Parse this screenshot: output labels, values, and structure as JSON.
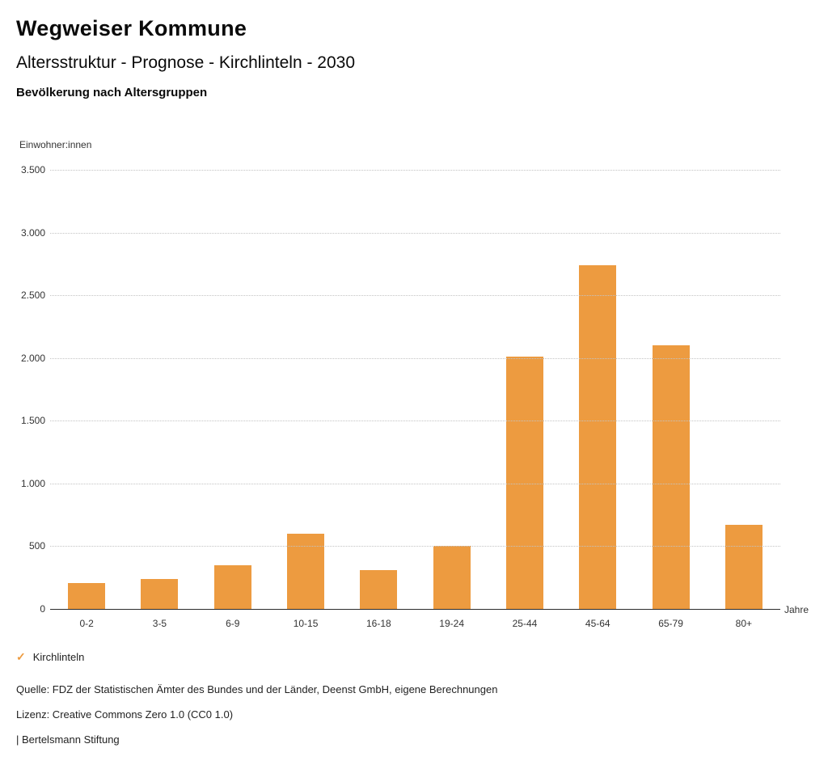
{
  "header": {
    "title": "Wegweiser Kommune",
    "subtitle": "Altersstruktur - Prognose - Kirchlinteln - 2030"
  },
  "chart_data": {
    "type": "bar",
    "title": "Bevölkerung nach Altersgruppen",
    "ylabel": "Einwohner:innen",
    "xlabel": "Jahre",
    "categories": [
      "0-2",
      "3-5",
      "6-9",
      "10-15",
      "16-18",
      "19-24",
      "25-44",
      "45-64",
      "65-79",
      "80+"
    ],
    "values": [
      205,
      240,
      350,
      600,
      310,
      505,
      2010,
      2740,
      2100,
      670
    ],
    "series_name": "Kirchlinteln",
    "ylim": [
      0,
      3500
    ],
    "ytick_step": 500,
    "ytick_labels": [
      "0",
      "500",
      "1.000",
      "1.500",
      "2.000",
      "2.500",
      "3.000",
      "3.500"
    ],
    "bar_color": "#ED9B40",
    "grid": "horizontal-dotted",
    "legend_position": "bottom-left"
  },
  "legend": {
    "check_icon": "✓",
    "label": "Kirchlinteln",
    "color": "#ED9B40"
  },
  "footer": {
    "source": "Quelle: FDZ der Statistischen Ämter des Bundes und der Länder, Deenst GmbH, eigene Berechnungen",
    "license": "Lizenz: Creative Commons Zero 1.0 (CC0 1.0)",
    "attribution": "| Bertelsmann Stiftung"
  }
}
